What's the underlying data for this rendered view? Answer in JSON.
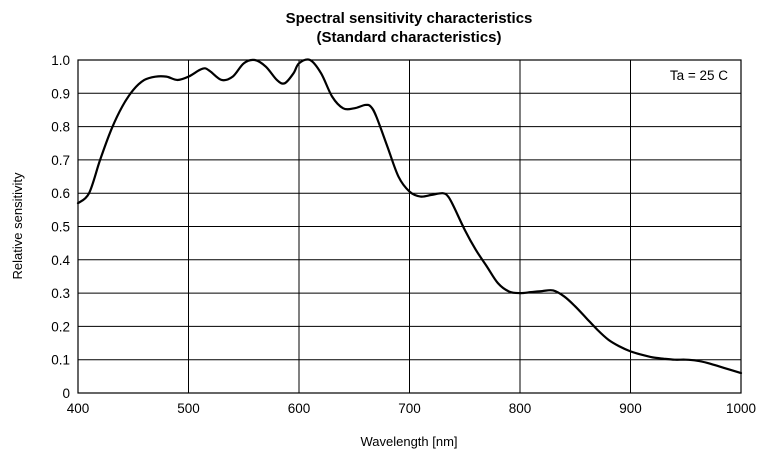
{
  "chart_data": {
    "type": "line",
    "title": "Spectral sensitivity characteristics",
    "subtitle": "(Standard characteristics)",
    "xlabel": "Wavelength [nm]",
    "ylabel": "Relative sensitivity",
    "xlim": [
      400,
      1000
    ],
    "ylim": [
      0,
      1.0
    ],
    "x_ticks": [
      "400",
      "500",
      "600",
      "700",
      "800",
      "900",
      "1000"
    ],
    "y_ticks": [
      "0",
      "0.1",
      "0.2",
      "0.3",
      "0.4",
      "0.5",
      "0.6",
      "0.7",
      "0.8",
      "0.9",
      "1.0"
    ],
    "grid": true,
    "annotation": "Ta = 25 C",
    "series": [
      {
        "x": [
          400,
          410,
          420,
          430,
          440,
          450,
          460,
          470,
          480,
          490,
          500,
          510,
          515,
          520,
          530,
          540,
          550,
          560,
          570,
          580,
          587,
          595,
          600,
          610,
          620,
          630,
          640,
          650,
          660,
          665,
          670,
          680,
          690,
          700,
          710,
          720,
          730,
          735,
          740,
          750,
          760,
          770,
          780,
          790,
          800,
          810,
          820,
          830,
          840,
          850,
          860,
          870,
          880,
          890,
          900,
          910,
          920,
          930,
          940,
          950,
          960,
          970,
          980,
          990,
          1000
        ],
        "y": [
          0.57,
          0.6,
          0.7,
          0.79,
          0.86,
          0.91,
          0.94,
          0.95,
          0.95,
          0.94,
          0.95,
          0.97,
          0.975,
          0.965,
          0.94,
          0.95,
          0.99,
          1.0,
          0.98,
          0.94,
          0.93,
          0.96,
          0.99,
          1.0,
          0.96,
          0.89,
          0.855,
          0.855,
          0.865,
          0.86,
          0.83,
          0.74,
          0.65,
          0.605,
          0.59,
          0.595,
          0.6,
          0.59,
          0.56,
          0.49,
          0.43,
          0.38,
          0.33,
          0.305,
          0.3,
          0.303,
          0.306,
          0.308,
          0.29,
          0.26,
          0.225,
          0.19,
          0.16,
          0.14,
          0.125,
          0.115,
          0.107,
          0.103,
          0.1,
          0.1,
          0.097,
          0.09,
          0.08,
          0.07,
          0.06
        ]
      }
    ]
  }
}
